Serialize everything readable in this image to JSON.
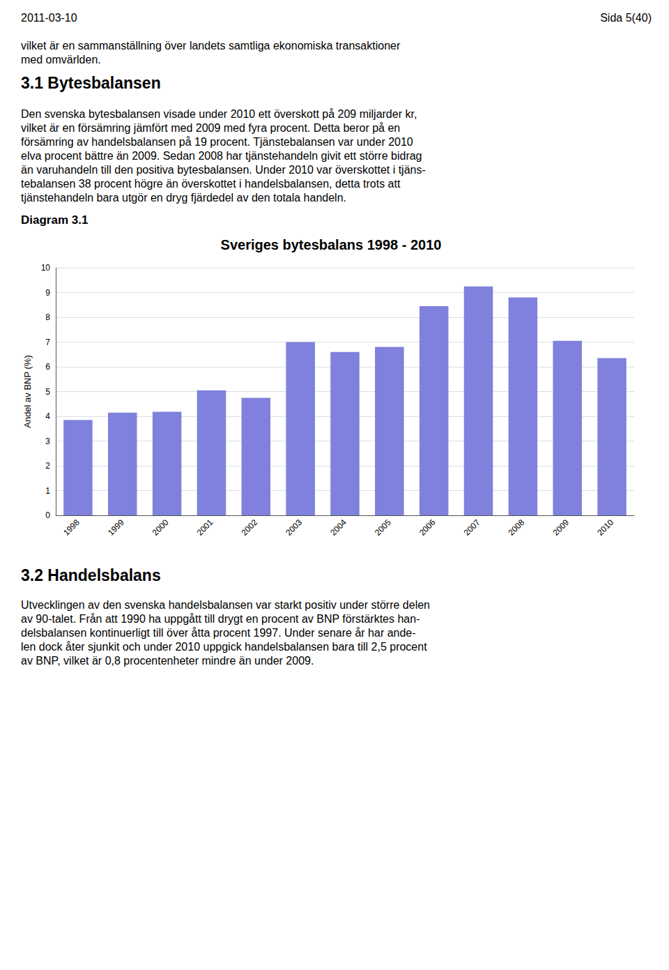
{
  "page": {
    "header_left": "2011-03-10",
    "header_right": "Sida 5(40)",
    "intro": [
      "vilket är en sammanställning över landets samtliga ekonomiska transaktioner",
      "med omvärlden."
    ],
    "heading1": "3.1 Bytesbalansen",
    "body1": [
      "Den svenska bytesbalansen visade under 2010 ett överskott på 209 miljarder kr,",
      "vilket är en försämring jämfört med 2009 med fyra procent. Detta beror på en",
      "försämring av handelsbalansen på 19 procent. Tjänstebalansen var under 2010",
      "elva procent bättre än 2009. Sedan 2008 har tjänstehandeln givit ett större bidrag",
      "än varuhandeln till den positiva bytesbalansen. Under 2010 var överskottet i tjäns-",
      "tebalansen 38 procent högre än överskottet i handelsbalansen, detta trots att",
      "tjänstehandeln bara utgör en dryg fjärdedel av den totala handeln."
    ],
    "diagram_label": "Diagram 3.1",
    "heading2": "3.2 Handelsbalans",
    "body2": [
      "Utvecklingen av den svenska handelsbalansen var starkt positiv under större delen",
      "av 90-talet. Från att 1990 ha uppgått till drygt en procent av BNP förstärktes han-",
      "delsbalansen kontinuerligt till över åtta procent 1997. Under senare år har ande-",
      "len dock åter sjunkit och under 2010 uppgick handelsbalansen bara till 2,5 procent",
      "av BNP, vilket är 0,8 procentenheter mindre än under 2009."
    ]
  },
  "chart_data": {
    "type": "bar",
    "title": "Sveriges bytesbalans 1998 - 2010",
    "ylabel": "Andel av BNP (%)",
    "categories": [
      "1998",
      "1999",
      "2000",
      "2001",
      "2002",
      "2003",
      "2004",
      "2005",
      "2006",
      "2007",
      "2008",
      "2009",
      "2010"
    ],
    "values": [
      3.85,
      4.15,
      4.18,
      5.05,
      4.75,
      7.0,
      6.6,
      6.8,
      8.45,
      9.25,
      8.8,
      7.05,
      6.35
    ],
    "color": "#8080dd",
    "ylim": [
      0,
      10
    ],
    "yticks": [
      0,
      1,
      2,
      3,
      4,
      5,
      6,
      7,
      8,
      9,
      10
    ],
    "grid": true
  }
}
